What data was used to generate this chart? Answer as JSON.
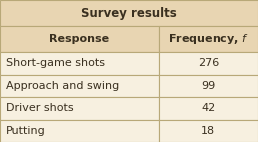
{
  "title": "Survey results",
  "col_headers": [
    "Response",
    "Frequency, $f$"
  ],
  "rows": [
    [
      "Short-game shots",
      "276"
    ],
    [
      "Approach and swing",
      "99"
    ],
    [
      "Driver shots",
      "42"
    ],
    [
      "Putting",
      "18"
    ]
  ],
  "header_bg": "#e8d5b2",
  "row_bg": "#f7f0e0",
  "title_color": "#3a3020",
  "cell_color": "#3a3020",
  "border_color": "#b8a878",
  "fig_bg": "#f7f0e0",
  "title_fontsize": 8.5,
  "header_fontsize": 8.0,
  "cell_fontsize": 8.0,
  "col_split": 0.615
}
